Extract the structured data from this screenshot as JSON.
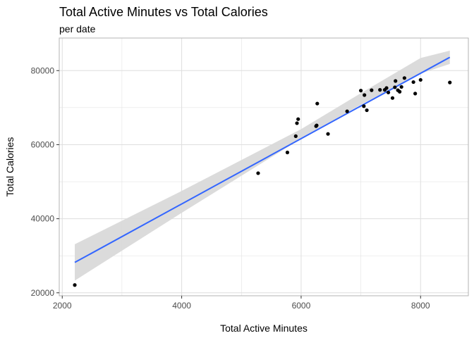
{
  "chart_data": {
    "type": "scatter",
    "title": "Total Active Minutes vs Total Calories",
    "subtitle": "per date",
    "xlabel": "Total Active Minutes",
    "ylabel": "Total Calories",
    "xlim": [
      1950,
      8800
    ],
    "ylim": [
      19200,
      88800
    ],
    "x_ticks": [
      2000,
      4000,
      6000,
      8000
    ],
    "y_ticks": [
      20000,
      40000,
      60000,
      80000
    ],
    "x_tick_labels": [
      "2000",
      "4000",
      "6000",
      "8000"
    ],
    "y_tick_labels": [
      "20000",
      "40000",
      "60000",
      "80000"
    ],
    "grid": true,
    "points": [
      {
        "x": 2210,
        "y": 22100
      },
      {
        "x": 5280,
        "y": 52300
      },
      {
        "x": 5770,
        "y": 57900
      },
      {
        "x": 5910,
        "y": 62300
      },
      {
        "x": 5930,
        "y": 65800
      },
      {
        "x": 5950,
        "y": 66900
      },
      {
        "x": 6250,
        "y": 65000
      },
      {
        "x": 6260,
        "y": 65200
      },
      {
        "x": 6270,
        "y": 71100
      },
      {
        "x": 6450,
        "y": 62900
      },
      {
        "x": 6770,
        "y": 69000
      },
      {
        "x": 7000,
        "y": 74600
      },
      {
        "x": 7050,
        "y": 70400
      },
      {
        "x": 7060,
        "y": 73400
      },
      {
        "x": 7100,
        "y": 69300
      },
      {
        "x": 7180,
        "y": 74700
      },
      {
        "x": 7320,
        "y": 74800
      },
      {
        "x": 7400,
        "y": 74800
      },
      {
        "x": 7430,
        "y": 75300
      },
      {
        "x": 7460,
        "y": 74100
      },
      {
        "x": 7530,
        "y": 72600
      },
      {
        "x": 7570,
        "y": 75500
      },
      {
        "x": 7580,
        "y": 77200
      },
      {
        "x": 7620,
        "y": 74700
      },
      {
        "x": 7650,
        "y": 74300
      },
      {
        "x": 7680,
        "y": 75600
      },
      {
        "x": 7730,
        "y": 78000
      },
      {
        "x": 7880,
        "y": 76900
      },
      {
        "x": 7910,
        "y": 73800
      },
      {
        "x": 8000,
        "y": 77500
      },
      {
        "x": 8490,
        "y": 76800
      }
    ],
    "fit_line": {
      "x": [
        2210,
        8490
      ],
      "y": [
        28200,
        83600
      ]
    },
    "confidence_band": {
      "x": [
        2210,
        4000,
        6000,
        7000,
        8000,
        8490
      ],
      "lower": [
        23300,
        41600,
        61600,
        70800,
        79200,
        81800
      ],
      "upper": [
        33100,
        47500,
        64200,
        73900,
        83400,
        85400
      ]
    },
    "colors": {
      "fit_line": "#3366FF",
      "band": "#d9d9d9",
      "points": "#000000",
      "grid": "#dedede",
      "panel_border": "#b3b3b3"
    }
  }
}
